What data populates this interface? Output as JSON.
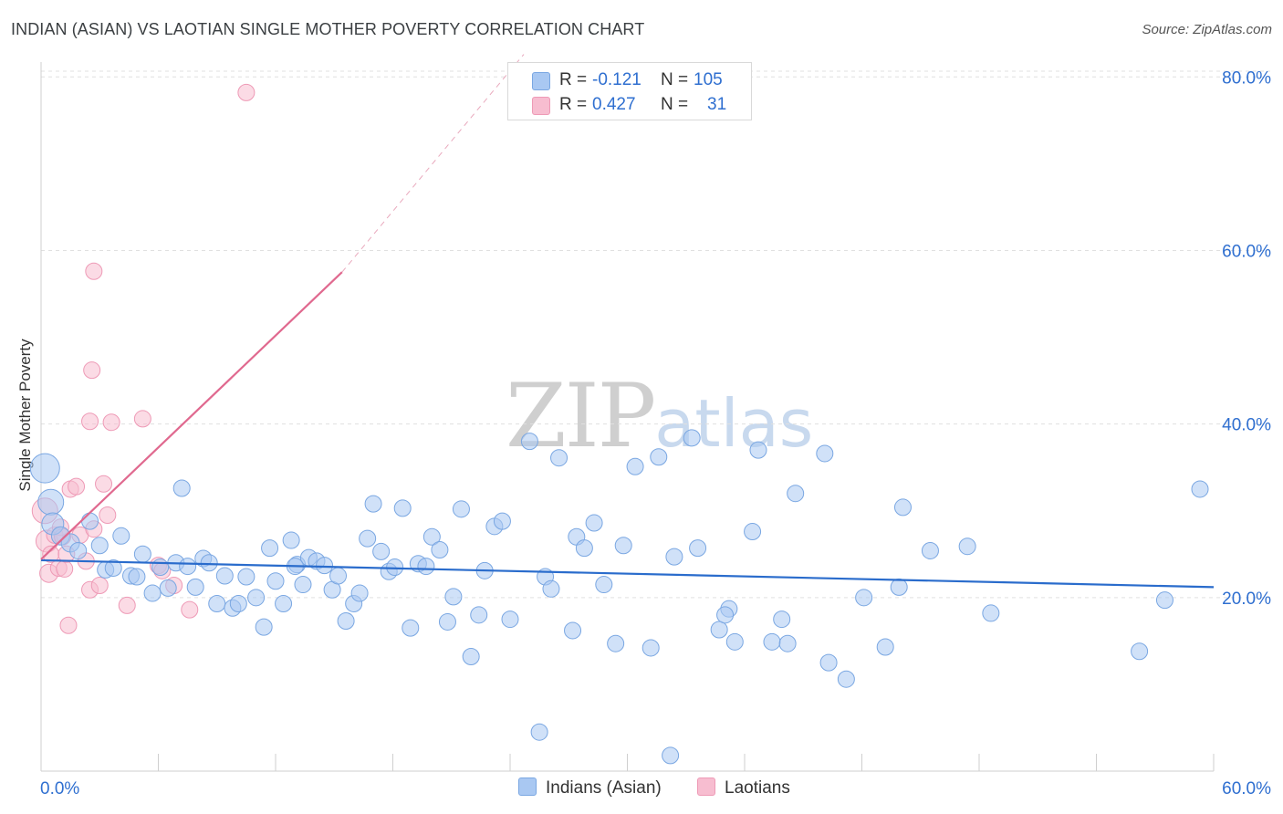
{
  "header": {
    "title": "INDIAN (ASIAN) VS LAOTIAN SINGLE MOTHER POVERTY CORRELATION CHART",
    "source": "Source: ZipAtlas.com"
  },
  "watermark": {
    "zip": "ZIP",
    "atlas": "atlas"
  },
  "legend_top": {
    "rows": [
      {
        "r_label": "R =",
        "r_value": "-0.121",
        "n_label": "N =",
        "n_value": "105"
      },
      {
        "r_label": "R =",
        "r_value": "0.427",
        "n_label": "N =",
        "n_value": "31"
      }
    ]
  },
  "legend_bottom": {
    "items": [
      "Indians (Asian)",
      "Laotians"
    ]
  },
  "colors": {
    "blue_fill": "#a9c8f2",
    "blue_stroke": "#7aa7e2",
    "blue_line": "#2a6ccc",
    "pink_fill": "#f7bdd0",
    "pink_stroke": "#ee9ab6",
    "pink_line": "#e0698f",
    "tick_label": "#2f6fd0",
    "grid": "#e0e0e0"
  },
  "chart_data": {
    "type": "scatter",
    "title": "INDIAN (ASIAN) VS LAOTIAN SINGLE MOTHER POVERTY CORRELATION CHART",
    "xlabel": "",
    "ylabel": "Single Mother Poverty",
    "xlim": [
      0,
      60
    ],
    "ylim": [
      0,
      81.5
    ],
    "x_tick_labels": [
      "0.0%",
      "60.0%"
    ],
    "y_ticks": [
      20,
      40,
      60,
      80
    ],
    "y_tick_labels": [
      "20.0%",
      "40.0%",
      "60.0%",
      "80.0%"
    ],
    "grid": "horizontal dashed",
    "legend_position": "top-center and bottom",
    "series": [
      {
        "name": "Indians (Asian)",
        "R": -0.121,
        "N": 105,
        "trend": {
          "x": [
            0,
            60
          ],
          "y": [
            24.3,
            21.2
          ]
        },
        "points": [
          [
            0.2,
            34.9,
            16
          ],
          [
            0.5,
            31.0,
            14
          ],
          [
            0.6,
            28.5,
            12
          ],
          [
            1.0,
            27.1,
            10
          ],
          [
            1.5,
            26.3,
            10
          ],
          [
            1.9,
            25.4,
            9
          ],
          [
            2.5,
            28.8,
            9
          ],
          [
            3.0,
            26.0,
            9
          ],
          [
            3.3,
            23.2,
            9
          ],
          [
            3.7,
            23.4,
            9
          ],
          [
            4.1,
            27.1,
            9
          ],
          [
            4.6,
            22.5,
            9
          ],
          [
            4.9,
            22.4,
            9
          ],
          [
            5.2,
            25.0,
            9
          ],
          [
            5.7,
            20.5,
            9
          ],
          [
            6.1,
            23.5,
            9
          ],
          [
            6.5,
            21.1,
            9
          ],
          [
            6.9,
            24.0,
            9
          ],
          [
            7.2,
            32.6,
            9
          ],
          [
            7.5,
            23.6,
            9
          ],
          [
            7.9,
            21.2,
            9
          ],
          [
            8.3,
            24.5,
            9
          ],
          [
            8.6,
            24.0,
            9
          ],
          [
            9.0,
            19.3,
            9
          ],
          [
            9.4,
            22.5,
            9
          ],
          [
            9.8,
            18.8,
            9
          ],
          [
            10.1,
            19.3,
            9
          ],
          [
            10.5,
            22.4,
            9
          ],
          [
            11.0,
            20.0,
            9
          ],
          [
            11.4,
            16.6,
            9
          ],
          [
            11.7,
            25.7,
            9
          ],
          [
            12.0,
            21.9,
            9
          ],
          [
            12.4,
            19.3,
            9
          ],
          [
            12.8,
            26.6,
            9
          ],
          [
            13.1,
            23.8,
            9
          ],
          [
            13.4,
            21.5,
            9
          ],
          [
            13.7,
            24.6,
            9
          ],
          [
            14.1,
            24.2,
            9
          ],
          [
            14.5,
            23.7,
            9
          ],
          [
            14.9,
            20.9,
            9
          ],
          [
            15.2,
            22.5,
            9
          ],
          [
            15.6,
            17.3,
            9
          ],
          [
            16.0,
            19.3,
            9
          ],
          [
            16.3,
            20.5,
            9
          ],
          [
            16.7,
            26.8,
            9
          ],
          [
            17.0,
            30.8,
            9
          ],
          [
            17.4,
            25.3,
            9
          ],
          [
            17.8,
            23.0,
            9
          ],
          [
            18.1,
            23.5,
            9
          ],
          [
            18.5,
            30.3,
            9
          ],
          [
            18.9,
            16.5,
            9
          ],
          [
            19.3,
            23.9,
            9
          ],
          [
            19.7,
            23.6,
            9
          ],
          [
            20.0,
            27.0,
            9
          ],
          [
            20.4,
            25.5,
            9
          ],
          [
            20.8,
            17.2,
            9
          ],
          [
            21.1,
            20.1,
            9
          ],
          [
            21.5,
            30.2,
            9
          ],
          [
            22.0,
            13.2,
            9
          ],
          [
            22.4,
            18.0,
            9
          ],
          [
            22.7,
            23.1,
            9
          ],
          [
            23.2,
            28.2,
            9
          ],
          [
            23.6,
            28.8,
            9
          ],
          [
            24.0,
            17.5,
            9
          ],
          [
            25.0,
            38.0,
            9
          ],
          [
            25.8,
            22.4,
            9
          ],
          [
            26.1,
            21.0,
            9
          ],
          [
            26.5,
            36.1,
            9
          ],
          [
            27.2,
            16.2,
            9
          ],
          [
            27.4,
            27.0,
            9
          ],
          [
            27.8,
            25.7,
            9
          ],
          [
            28.3,
            28.6,
            9
          ],
          [
            28.8,
            21.5,
            9
          ],
          [
            29.4,
            14.7,
            9
          ],
          [
            29.8,
            26.0,
            9
          ],
          [
            30.4,
            35.1,
            9
          ],
          [
            31.2,
            14.2,
            9
          ],
          [
            31.6,
            36.2,
            9
          ],
          [
            32.4,
            24.7,
            9
          ],
          [
            33.3,
            38.4,
            9
          ],
          [
            33.6,
            25.7,
            9
          ],
          [
            34.7,
            16.3,
            9
          ],
          [
            35.2,
            18.7,
            9
          ],
          [
            35.5,
            14.9,
            9
          ],
          [
            36.4,
            27.6,
            9
          ],
          [
            36.7,
            37.0,
            9
          ],
          [
            37.4,
            14.9,
            9
          ],
          [
            37.9,
            17.5,
            9
          ],
          [
            38.2,
            14.7,
            9
          ],
          [
            38.6,
            32.0,
            9
          ],
          [
            40.1,
            36.6,
            9
          ],
          [
            40.3,
            12.5,
            9
          ],
          [
            41.2,
            10.6,
            9
          ],
          [
            42.1,
            20.0,
            9
          ],
          [
            43.2,
            14.3,
            9
          ],
          [
            43.9,
            21.2,
            9
          ],
          [
            44.1,
            30.4,
            9
          ],
          [
            45.5,
            25.4,
            9
          ],
          [
            47.4,
            25.9,
            9
          ],
          [
            48.6,
            18.2,
            9
          ],
          [
            56.2,
            13.8,
            9
          ],
          [
            57.5,
            19.7,
            9
          ],
          [
            59.3,
            32.5,
            9
          ],
          [
            35.0,
            18.0,
            9
          ],
          [
            25.5,
            4.5,
            9
          ],
          [
            32.2,
            1.8,
            9
          ],
          [
            13.0,
            23.6,
            9
          ]
        ]
      },
      {
        "name": "Laotians",
        "R": 0.427,
        "N": 31,
        "trend": {
          "x": [
            0,
            15.4
          ],
          "y": [
            24.4,
            57.5
          ],
          "extended": {
            "x": [
              15.4,
              24.7
            ],
            "y": [
              57.5,
              82.6
            ]
          }
        },
        "points": [
          [
            0.2,
            30.0,
            14
          ],
          [
            0.3,
            26.5,
            12
          ],
          [
            0.4,
            22.8,
            10
          ],
          [
            0.5,
            25.0,
            9
          ],
          [
            0.7,
            27.2,
            9
          ],
          [
            0.9,
            23.4,
            9
          ],
          [
            1.0,
            28.1,
            9
          ],
          [
            1.2,
            23.3,
            9
          ],
          [
            1.3,
            25.0,
            9
          ],
          [
            1.4,
            16.8,
            9
          ],
          [
            1.5,
            32.5,
            9
          ],
          [
            1.8,
            32.8,
            9
          ],
          [
            2.0,
            27.2,
            9
          ],
          [
            2.3,
            24.2,
            9
          ],
          [
            2.5,
            20.9,
            9
          ],
          [
            2.5,
            40.3,
            9
          ],
          [
            2.6,
            46.2,
            9
          ],
          [
            2.7,
            27.9,
            9
          ],
          [
            2.7,
            57.6,
            9
          ],
          [
            3.0,
            21.4,
            9
          ],
          [
            3.2,
            33.1,
            9
          ],
          [
            3.4,
            29.5,
            9
          ],
          [
            3.6,
            40.2,
            9
          ],
          [
            4.4,
            19.1,
            9
          ],
          [
            5.2,
            40.6,
            9
          ],
          [
            6.0,
            23.7,
            9
          ],
          [
            6.8,
            21.4,
            9
          ],
          [
            7.6,
            18.6,
            9
          ],
          [
            10.5,
            78.2,
            9
          ],
          [
            6.2,
            23.1,
            9
          ],
          [
            1.1,
            27.0,
            9
          ]
        ]
      }
    ]
  }
}
